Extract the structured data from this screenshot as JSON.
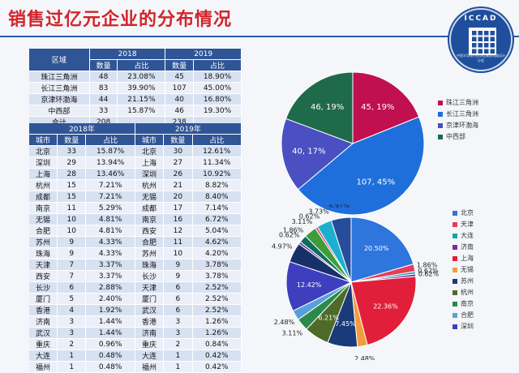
{
  "title": "销售过亿元企业的分布情况",
  "logo_text": "ICCAD",
  "logo_subtext": "中国半导体行业协会集成电路设计分会",
  "table_regions": {
    "headers": [
      "区域",
      "2018",
      "2019",
      "数量",
      "占比",
      "数量",
      "占比"
    ],
    "rows": [
      [
        "珠江三角洲",
        "48",
        "23.08%",
        "45",
        "18.90%"
      ],
      [
        "长江三角洲",
        "83",
        "39.90%",
        "107",
        "45.00%"
      ],
      [
        "京津环渤海",
        "44",
        "21.15%",
        "40",
        "16.80%"
      ],
      [
        "中西部",
        "33",
        "15.87%",
        "46",
        "19.30%"
      ],
      [
        "合计",
        "208",
        "",
        "238",
        ""
      ]
    ]
  },
  "table_cities": {
    "headers": [
      "2018年",
      "2019年",
      "城市",
      "数量",
      "占比",
      "城市",
      "数量",
      "占比"
    ],
    "rows": [
      [
        "北京",
        "33",
        "15.87%",
        "北京",
        "30",
        "12.61%"
      ],
      [
        "深圳",
        "29",
        "13.94%",
        "上海",
        "27",
        "11.34%"
      ],
      [
        "上海",
        "28",
        "13.46%",
        "深圳",
        "26",
        "10.92%"
      ],
      [
        "杭州",
        "15",
        "7.21%",
        "杭州",
        "21",
        "8.82%"
      ],
      [
        "成都",
        "15",
        "7.21%",
        "无锡",
        "20",
        "8.40%"
      ],
      [
        "南京",
        "11",
        "5.29%",
        "成都",
        "17",
        "7.14%"
      ],
      [
        "无锡",
        "10",
        "4.81%",
        "南京",
        "16",
        "6.72%"
      ],
      [
        "合肥",
        "10",
        "4.81%",
        "西安",
        "12",
        "5.04%"
      ],
      [
        "苏州",
        "9",
        "4.33%",
        "合肥",
        "11",
        "4.62%"
      ],
      [
        "珠海",
        "9",
        "4.33%",
        "苏州",
        "10",
        "4.20%"
      ],
      [
        "天津",
        "7",
        "3.37%",
        "珠海",
        "9",
        "3.78%"
      ],
      [
        "西安",
        "7",
        "3.37%",
        "长沙",
        "9",
        "3.78%"
      ],
      [
        "长沙",
        "6",
        "2.88%",
        "天津",
        "6",
        "2.52%"
      ],
      [
        "厦门",
        "5",
        "2.40%",
        "厦门",
        "6",
        "2.52%"
      ],
      [
        "香港",
        "4",
        "1.92%",
        "武汉",
        "6",
        "2.52%"
      ],
      [
        "济南",
        "3",
        "1.44%",
        "香港",
        "3",
        "1.26%"
      ],
      [
        "武汉",
        "3",
        "1.44%",
        "济南",
        "3",
        "1.26%"
      ],
      [
        "重庆",
        "2",
        "0.96%",
        "重庆",
        "2",
        "0.84%"
      ],
      [
        "大连",
        "1",
        "0.48%",
        "大连",
        "1",
        "0.42%"
      ],
      [
        "福州",
        "1",
        "0.48%",
        "福州",
        "1",
        "0.42%"
      ]
    ]
  },
  "chart_data": [
    {
      "type": "pie",
      "slices": [
        {
          "label": "珠江三角洲",
          "value": 45,
          "pct": "19%",
          "display": "45, 19%",
          "color": "#c0104f"
        },
        {
          "label": "长江三角洲",
          "value": 107,
          "pct": "45%",
          "display": "107, 45%",
          "color": "#1e6fdb"
        },
        {
          "label": "京津环渤海",
          "value": 40,
          "pct": "17%",
          "display": "40, 17%",
          "color": "#4a4fc2"
        },
        {
          "label": "中西部",
          "value": 46,
          "pct": "19%",
          "display": "46, 19%",
          "color": "#1f6a4b"
        }
      ],
      "legend": [
        "珠江三角洲",
        "长江三角洲",
        "京津环渤海",
        "中西部"
      ]
    },
    {
      "type": "pie",
      "slices": [
        {
          "label": "北京",
          "value": 20.5,
          "display": "20.50%",
          "color": "#2e75de"
        },
        {
          "label": "天津",
          "value": 1.86,
          "display": "1.86%",
          "color": "#e53d55"
        },
        {
          "label": "大连",
          "value": 0.62,
          "display": "0.62%",
          "color": "#1ba3a3"
        },
        {
          "label": "济南",
          "value": 0.62,
          "display": "0.62%",
          "color": "#7d2a9e"
        },
        {
          "label": "上海",
          "value": 22.36,
          "display": "22.36%",
          "color": "#e11f3a"
        },
        {
          "label": "无锡",
          "value": 2.48,
          "display": "2.48%",
          "color": "#f39c3d"
        },
        {
          "label": "苏州",
          "value": 7.45,
          "display": "7.45%",
          "color": "#1a3a7a"
        },
        {
          "label": "杭州",
          "value": 6.21,
          "display": "6.21%",
          "color": "#4f6b2a"
        },
        {
          "label": "南京",
          "value": 3.11,
          "display": "3.11%",
          "color": "#2b8a4a"
        },
        {
          "label": "合肥",
          "value": 2.48,
          "display": "2.48%",
          "color": "#5aa0d8"
        },
        {
          "label": "深圳",
          "value": 12.42,
          "display": "12.42%",
          "color": "#3d3fbf"
        },
        {
          "label": "",
          "value": 4.97,
          "display": "4.97%",
          "color": "#18306a"
        },
        {
          "label": "",
          "value": 0.62,
          "display": "0.62%",
          "color": "#7a3b8e"
        },
        {
          "label": "",
          "value": 1.86,
          "display": "1.86%",
          "color": "#0e6d5e"
        },
        {
          "label": "",
          "value": 3.11,
          "display": "3.11%",
          "color": "#3f9c3a"
        },
        {
          "label": "",
          "value": 0.62,
          "display": "0.62%",
          "color": "#d84a7c"
        },
        {
          "label": "",
          "value": 3.73,
          "display": "3.73%",
          "color": "#1bb0d0"
        },
        {
          "label": "",
          "value": 4.97,
          "display": "4.97%",
          "color": "#264d9c"
        }
      ],
      "legend": [
        "北京",
        "天津",
        "大连",
        "济南",
        "上海",
        "无锡",
        "苏州",
        "杭州",
        "南京",
        "合肥",
        "深圳"
      ]
    }
  ]
}
